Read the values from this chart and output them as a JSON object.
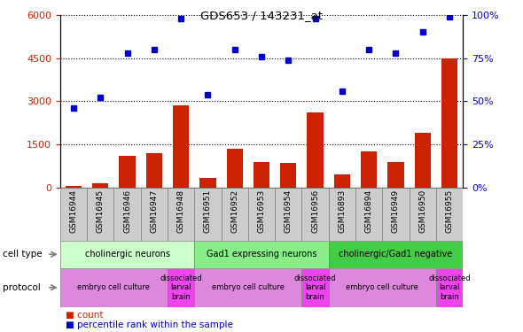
{
  "title": "GDS653 / 143231_at",
  "samples": [
    "GSM16944",
    "GSM16945",
    "GSM16946",
    "GSM16947",
    "GSM16948",
    "GSM16951",
    "GSM16952",
    "GSM16953",
    "GSM16954",
    "GSM16956",
    "GSM16893",
    "GSM16894",
    "GSM16949",
    "GSM16950",
    "GSM16955"
  ],
  "counts": [
    50,
    150,
    1100,
    1200,
    2850,
    350,
    1350,
    900,
    850,
    2600,
    450,
    1250,
    900,
    1900,
    4500
  ],
  "percentiles": [
    46,
    52,
    78,
    80,
    98,
    54,
    80,
    76,
    74,
    98,
    56,
    80,
    78,
    90,
    99
  ],
  "bar_color": "#cc2200",
  "dot_color": "#0000cc",
  "ylim_left": [
    0,
    6000
  ],
  "ylim_right": [
    0,
    100
  ],
  "yticks_left": [
    0,
    1500,
    3000,
    4500,
    6000
  ],
  "yticks_right": [
    0,
    25,
    50,
    75,
    100
  ],
  "cell_types": [
    {
      "label": "cholinergic neurons",
      "start": 0,
      "end": 4,
      "color": "#ccffcc"
    },
    {
      "label": "Gad1 expressing neurons",
      "start": 5,
      "end": 9,
      "color": "#88ee88"
    },
    {
      "label": "cholinergic/Gad1 negative",
      "start": 10,
      "end": 14,
      "color": "#44cc44"
    }
  ],
  "protocols": [
    {
      "label": "embryo cell culture",
      "start": 0,
      "end": 3,
      "color": "#dd88dd"
    },
    {
      "label": "dissociated\nlarval\nbrain",
      "start": 4,
      "end": 4,
      "color": "#ee44ee"
    },
    {
      "label": "embryo cell culture",
      "start": 5,
      "end": 8,
      "color": "#dd88dd"
    },
    {
      "label": "dissociated\nlarval\nbrain",
      "start": 9,
      "end": 9,
      "color": "#ee44ee"
    },
    {
      "label": "embryo cell culture",
      "start": 10,
      "end": 13,
      "color": "#dd88dd"
    },
    {
      "label": "dissociated\nlarval\nbrain",
      "start": 14,
      "end": 14,
      "color": "#ee44ee"
    }
  ],
  "legend_count_label": "count",
  "legend_pct_label": "percentile rank within the sample",
  "cell_type_label": "cell type",
  "protocol_label": "protocol",
  "tick_label_color_left": "#cc2200",
  "tick_label_color_right": "#0000cc",
  "xaxis_bg": "#cccccc",
  "left_label_color": "#888888"
}
